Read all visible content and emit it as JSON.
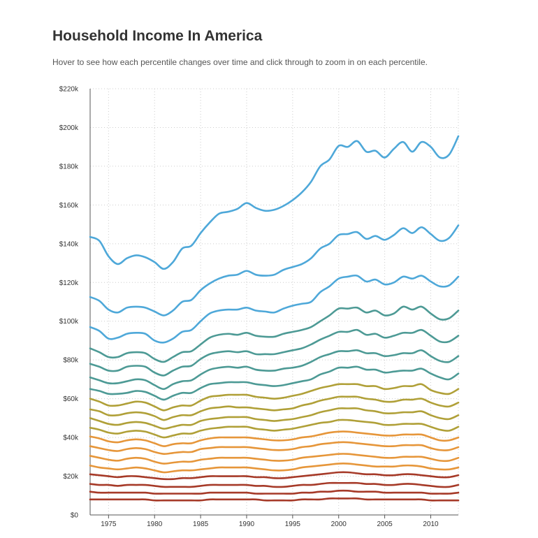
{
  "header": {
    "title": "Household Income In America",
    "subtitle": "Hover to see how each percentile changes over time and click through to zoom in on each percentile."
  },
  "chart_data": {
    "type": "line",
    "title": "Household Income In America",
    "xlabel": "",
    "ylabel": "",
    "xlim": [
      1973,
      2013
    ],
    "ylim": [
      0,
      220000
    ],
    "grid": true,
    "x_ticks": [
      {
        "value": 1975,
        "label": "1975"
      },
      {
        "value": 1980,
        "label": "1980"
      },
      {
        "value": 1985,
        "label": "1985"
      },
      {
        "value": 1990,
        "label": "1990"
      },
      {
        "value": 1995,
        "label": "1995"
      },
      {
        "value": 2000,
        "label": "2000"
      },
      {
        "value": 2005,
        "label": "2005"
      },
      {
        "value": 2010,
        "label": "2010"
      }
    ],
    "y_ticks": [
      {
        "value": 0,
        "label": "$0"
      },
      {
        "value": 20000,
        "label": "$20k"
      },
      {
        "value": 40000,
        "label": "$40k"
      },
      {
        "value": 60000,
        "label": "$60k"
      },
      {
        "value": 80000,
        "label": "$80k"
      },
      {
        "value": 100000,
        "label": "$100k"
      },
      {
        "value": 120000,
        "label": "$120k"
      },
      {
        "value": 140000,
        "label": "$140k"
      },
      {
        "value": 160000,
        "label": "$160k"
      },
      {
        "value": 180000,
        "label": "$180k"
      },
      {
        "value": 200000,
        "label": "$200k"
      },
      {
        "value": 220000,
        "label": "$220k"
      }
    ],
    "x": [
      1973,
      1974,
      1975,
      1976,
      1977,
      1978,
      1979,
      1980,
      1981,
      1982,
      1983,
      1984,
      1985,
      1986,
      1987,
      1988,
      1989,
      1990,
      1991,
      1992,
      1993,
      1994,
      1995,
      1996,
      1997,
      1998,
      1999,
      2000,
      2001,
      2002,
      2003,
      2004,
      2005,
      2006,
      2007,
      2008,
      2009,
      2010,
      2011,
      2012,
      2013
    ],
    "series": [
      {
        "name": "series-1",
        "color": "#4ea8d9",
        "values": [
          143500,
          141500,
          133500,
          129500,
          132500,
          134000,
          133000,
          130500,
          127000,
          130500,
          137500,
          139000,
          145500,
          151000,
          155500,
          156500,
          158000,
          161000,
          158500,
          157000,
          157500,
          159500,
          162500,
          166500,
          172000,
          180000,
          183500,
          190500,
          190000,
          193000,
          187500,
          188000,
          184500,
          189000,
          192500,
          187500,
          192500,
          190000,
          184500,
          186000,
          195500
        ]
      },
      {
        "name": "series-2",
        "color": "#4ea8d9",
        "values": [
          112500,
          110500,
          106000,
          104500,
          107000,
          107500,
          107000,
          105000,
          103000,
          105500,
          110000,
          111000,
          116000,
          119500,
          122000,
          123500,
          124000,
          126000,
          124000,
          123500,
          124000,
          126500,
          128000,
          129500,
          132500,
          137500,
          140000,
          144500,
          145000,
          146000,
          142500,
          144000,
          142000,
          144500,
          148000,
          145500,
          148500,
          145000,
          141500,
          143000,
          149500
        ]
      },
      {
        "name": "series-3",
        "color": "#4ea8d9",
        "values": [
          97000,
          95000,
          91000,
          91500,
          93500,
          94000,
          93500,
          90000,
          89000,
          91000,
          94500,
          95500,
          100000,
          104000,
          105500,
          106000,
          106000,
          107000,
          105500,
          105000,
          104500,
          106500,
          108000,
          109000,
          110000,
          115000,
          118000,
          122000,
          123000,
          123500,
          120500,
          121500,
          119000,
          120000,
          123000,
          122000,
          123500,
          120500,
          118000,
          118500,
          123000
        ]
      },
      {
        "name": "series-4",
        "color": "#4d9a95",
        "values": [
          86000,
          84000,
          81500,
          81500,
          83500,
          84000,
          83500,
          80500,
          79000,
          81500,
          84000,
          84500,
          88000,
          91500,
          93000,
          93500,
          93000,
          94000,
          92500,
          92000,
          92000,
          93500,
          94500,
          95500,
          97000,
          100000,
          103000,
          106500,
          106500,
          107000,
          104500,
          105500,
          103000,
          104000,
          107500,
          106000,
          107500,
          104000,
          101000,
          101500,
          105500
        ]
      },
      {
        "name": "series-5",
        "color": "#4d9a95",
        "values": [
          78000,
          76500,
          74500,
          74500,
          76500,
          77000,
          76500,
          73500,
          72000,
          74500,
          76500,
          77000,
          80500,
          83000,
          84000,
          84500,
          84000,
          84500,
          83000,
          83000,
          83000,
          84000,
          85000,
          86000,
          88000,
          90500,
          92500,
          94500,
          94500,
          95500,
          93000,
          93500,
          91500,
          92500,
          94000,
          94000,
          95500,
          92500,
          89500,
          89500,
          92500
        ]
      },
      {
        "name": "series-6",
        "color": "#4d9a95",
        "values": [
          71000,
          69500,
          68000,
          68000,
          69000,
          70000,
          69500,
          67000,
          65000,
          67500,
          69000,
          69500,
          72500,
          75000,
          76000,
          76500,
          76000,
          76500,
          75000,
          74500,
          74500,
          75500,
          76000,
          77000,
          79000,
          81500,
          83000,
          84500,
          84500,
          85000,
          83500,
          83500,
          82000,
          82500,
          83500,
          83500,
          85000,
          82000,
          79500,
          79000,
          82000
        ]
      },
      {
        "name": "series-7",
        "color": "#4d9a95",
        "values": [
          65000,
          64000,
          62500,
          62500,
          63000,
          64000,
          63500,
          61500,
          59500,
          61500,
          63000,
          63000,
          65500,
          67500,
          68000,
          68500,
          68500,
          68500,
          67500,
          67000,
          66500,
          67000,
          68000,
          69000,
          70000,
          72500,
          74000,
          76000,
          76000,
          76500,
          75000,
          75000,
          73500,
          74000,
          74500,
          74500,
          75500,
          73000,
          71000,
          70000,
          73000
        ]
      },
      {
        "name": "series-8",
        "color": "#b0a038",
        "values": [
          60000,
          58500,
          56500,
          56500,
          57500,
          58500,
          58000,
          56000,
          54000,
          55500,
          56500,
          56500,
          59000,
          61000,
          61500,
          62000,
          62000,
          62000,
          61000,
          60500,
          60000,
          60500,
          61500,
          62500,
          64000,
          65500,
          66500,
          67500,
          67500,
          67500,
          66500,
          66500,
          65000,
          65500,
          66500,
          66500,
          67500,
          64500,
          63000,
          62500,
          65000
        ]
      },
      {
        "name": "series-9",
        "color": "#b0a038",
        "values": [
          54500,
          53500,
          51500,
          51500,
          52500,
          53000,
          52500,
          51000,
          49000,
          50500,
          51500,
          51500,
          53500,
          55000,
          55500,
          56000,
          55500,
          55500,
          55000,
          54500,
          54000,
          54500,
          55000,
          56500,
          57500,
          59000,
          60000,
          61000,
          61000,
          61000,
          60000,
          59500,
          58500,
          58500,
          59500,
          59500,
          60000,
          58000,
          56500,
          56000,
          58000
        ]
      },
      {
        "name": "series-10",
        "color": "#b0a038",
        "values": [
          50000,
          48500,
          47000,
          46500,
          47500,
          48000,
          47500,
          46000,
          44500,
          45500,
          46500,
          46500,
          48500,
          49500,
          50000,
          50500,
          50500,
          50500,
          49500,
          49000,
          48500,
          49000,
          49500,
          50500,
          51500,
          53000,
          54000,
          55000,
          55000,
          55000,
          54000,
          53500,
          52500,
          52500,
          53000,
          53000,
          53500,
          51500,
          50000,
          49500,
          51500
        ]
      },
      {
        "name": "series-11",
        "color": "#b0a038",
        "values": [
          45000,
          44000,
          42500,
          42000,
          43000,
          43500,
          43000,
          41500,
          40000,
          41000,
          42000,
          42000,
          43500,
          44500,
          45000,
          45500,
          45500,
          45500,
          44500,
          44000,
          43500,
          44000,
          44500,
          45500,
          46500,
          47500,
          48000,
          49000,
          49000,
          48500,
          48000,
          47500,
          46500,
          46500,
          47000,
          47000,
          47000,
          45500,
          44000,
          43500,
          45500
        ]
      },
      {
        "name": "series-12",
        "color": "#e6963a",
        "values": [
          40500,
          39500,
          38000,
          37500,
          38500,
          39000,
          38500,
          37000,
          35500,
          36500,
          37000,
          37000,
          38500,
          39500,
          40000,
          40000,
          40000,
          40000,
          39500,
          39000,
          38500,
          38500,
          39000,
          40000,
          40500,
          41500,
          42500,
          43000,
          43000,
          42500,
          42000,
          41500,
          41000,
          41000,
          41500,
          41500,
          41500,
          40000,
          38500,
          38500,
          40000
        ]
      },
      {
        "name": "series-13",
        "color": "#e6963a",
        "values": [
          35500,
          34500,
          33500,
          33000,
          34000,
          34500,
          34000,
          32500,
          31500,
          32000,
          32500,
          32500,
          34000,
          34500,
          35000,
          35000,
          35000,
          35000,
          34500,
          34000,
          33500,
          33500,
          34000,
          35000,
          35500,
          36500,
          37000,
          37500,
          37500,
          37000,
          36500,
          36000,
          35500,
          35500,
          36000,
          36000,
          36000,
          34500,
          33500,
          33500,
          35000
        ]
      },
      {
        "name": "series-14",
        "color": "#e6963a",
        "values": [
          30500,
          29500,
          28500,
          28000,
          29000,
          29500,
          29000,
          27500,
          26500,
          27000,
          27500,
          27500,
          28500,
          29000,
          29500,
          29500,
          29500,
          29500,
          29000,
          28500,
          28000,
          28000,
          28500,
          29500,
          30000,
          30500,
          31000,
          31500,
          31500,
          31000,
          30500,
          30000,
          29500,
          29500,
          30000,
          30000,
          30000,
          29000,
          28000,
          28000,
          29500
        ]
      },
      {
        "name": "series-15",
        "color": "#e6963a",
        "values": [
          25500,
          24500,
          24000,
          23500,
          24000,
          24500,
          24000,
          23000,
          22000,
          22500,
          23000,
          23000,
          23500,
          24000,
          24500,
          24500,
          24500,
          24500,
          24000,
          23500,
          23000,
          23000,
          23500,
          24500,
          25000,
          25500,
          26000,
          26500,
          26500,
          26000,
          25500,
          25000,
          25000,
          25000,
          25500,
          25500,
          25000,
          24000,
          23500,
          23500,
          24500
        ]
      },
      {
        "name": "series-16",
        "color": "#a63a28",
        "values": [
          21000,
          20500,
          20000,
          19500,
          20000,
          20000,
          19500,
          19000,
          18500,
          18500,
          19000,
          19000,
          19500,
          20000,
          20000,
          20000,
          20000,
          20000,
          19500,
          19500,
          19000,
          19000,
          19500,
          20000,
          20500,
          21000,
          21500,
          22000,
          22000,
          21500,
          21000,
          21000,
          20500,
          20500,
          21000,
          21000,
          20500,
          20000,
          19500,
          19500,
          20500
        ]
      },
      {
        "name": "series-17",
        "color": "#a63a28",
        "values": [
          16000,
          15500,
          15500,
          15000,
          15500,
          15500,
          15500,
          15000,
          14500,
          14500,
          14500,
          14500,
          15000,
          15500,
          15500,
          15500,
          15500,
          15500,
          15000,
          15000,
          14500,
          14500,
          15000,
          15500,
          15500,
          16000,
          16500,
          16500,
          16500,
          16500,
          16000,
          16000,
          15500,
          15500,
          16000,
          16000,
          15500,
          15000,
          14500,
          14500,
          15500
        ]
      },
      {
        "name": "series-18",
        "color": "#a63a28",
        "values": [
          12000,
          11500,
          11500,
          11500,
          11500,
          11500,
          11500,
          11000,
          11000,
          11000,
          11000,
          11000,
          11000,
          11500,
          11500,
          11500,
          11500,
          11500,
          11000,
          11000,
          11000,
          11000,
          11000,
          11500,
          11500,
          12000,
          12000,
          12500,
          12500,
          12000,
          12000,
          12000,
          11500,
          11500,
          11500,
          11500,
          11500,
          11000,
          11000,
          11000,
          11500
        ]
      },
      {
        "name": "series-19",
        "color": "#a63a28",
        "values": [
          8000,
          8000,
          8000,
          8000,
          8000,
          8000,
          8000,
          7500,
          7500,
          7500,
          7500,
          7500,
          7500,
          8000,
          8000,
          8000,
          8000,
          8000,
          8000,
          7500,
          7500,
          7500,
          7500,
          8000,
          8000,
          8000,
          8500,
          8500,
          8500,
          8500,
          8000,
          8000,
          8000,
          8000,
          8000,
          8000,
          8000,
          7500,
          7500,
          7500,
          7500
        ]
      }
    ]
  }
}
